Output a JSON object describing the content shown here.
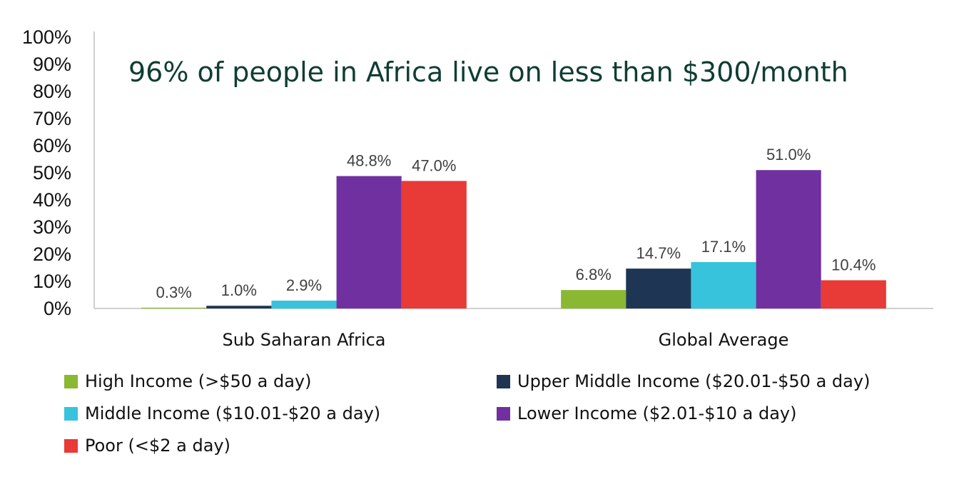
{
  "chart_data": {
    "type": "bar",
    "title": "96% of people in Africa live on less than $300/month",
    "categories": [
      "Sub Saharan Africa",
      "Global Average"
    ],
    "series": [
      {
        "name": "High Income (>$50 a day)",
        "color": "#8ab832",
        "values": [
          0.3,
          6.8
        ],
        "labels": [
          "0.3%",
          "6.8%"
        ]
      },
      {
        "name": "Upper Middle Income ($20.01-$50 a day)",
        "color": "#1e3654",
        "values": [
          1.0,
          14.7
        ],
        "labels": [
          "1.0%",
          "14.7%"
        ]
      },
      {
        "name": "Middle Income ($10.01-$20 a day)",
        "color": "#38c3dc",
        "values": [
          2.9,
          17.1
        ],
        "labels": [
          "2.9%",
          "17.1%"
        ]
      },
      {
        "name": "Lower Income ($2.01-$10 a day)",
        "color": "#7030a0",
        "values": [
          48.8,
          51.0
        ],
        "labels": [
          "48.8%",
          "51.0%"
        ]
      },
      {
        "name": "Poor (<$2 a day)",
        "color": "#e83a36",
        "values": [
          47.0,
          10.4
        ],
        "labels": [
          "47.0%",
          "10.4%"
        ]
      }
    ],
    "ylim": [
      0,
      100
    ],
    "yticks": [
      "0%",
      "10%",
      "20%",
      "30%",
      "40%",
      "50%",
      "60%",
      "70%",
      "80%",
      "90%",
      "100%"
    ],
    "xlabel": "",
    "ylabel": "",
    "grid": false,
    "legend_position": "bottom"
  }
}
